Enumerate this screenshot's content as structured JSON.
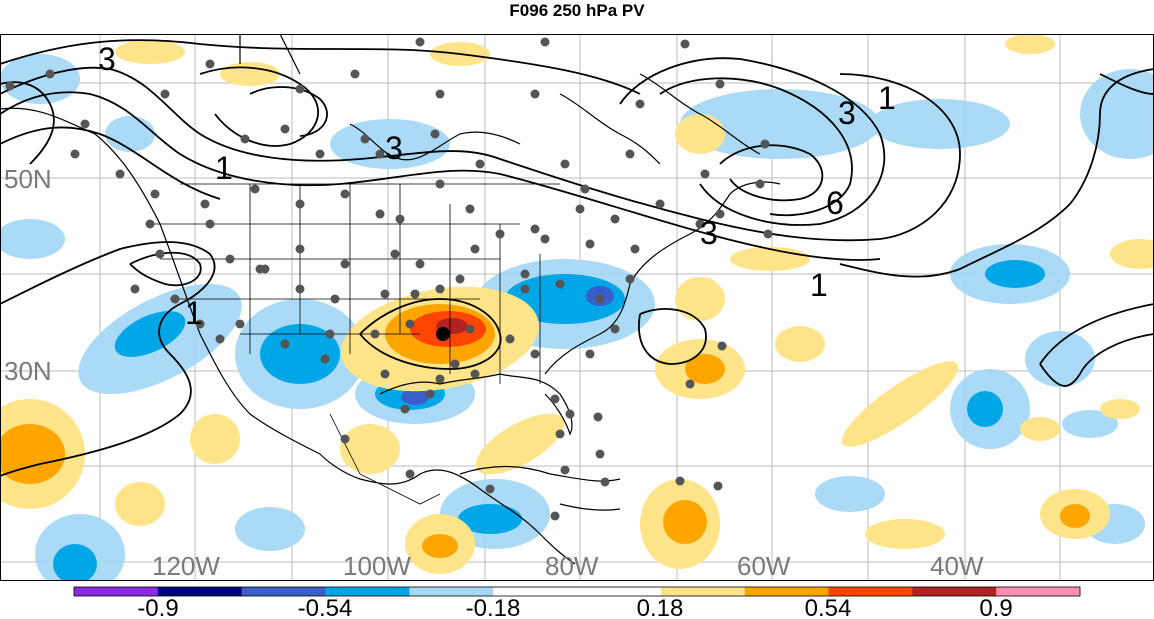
{
  "title": "F096 250 hPa PV",
  "lat_labels": [
    "50N",
    "30N"
  ],
  "lon_labels": [
    "120W",
    "100W",
    "80W",
    "60W",
    "40W"
  ],
  "contour_labels": [
    "3",
    "3",
    "1",
    "3",
    "6",
    "3",
    "1",
    "1",
    "1"
  ],
  "colorbar": {
    "colors": [
      "#8a2be2",
      "#000080",
      "#3a5fcd",
      "#00a6e6",
      "#a6d8f5",
      "#ffffff",
      "#ffffff",
      "#ffe48a",
      "#ffa500",
      "#ff4500",
      "#b22222",
      "#ff8fb0"
    ],
    "tick_labels": [
      "-0.9",
      "-0.54",
      "-0.18",
      "0.18",
      "0.54",
      "0.9"
    ]
  }
}
